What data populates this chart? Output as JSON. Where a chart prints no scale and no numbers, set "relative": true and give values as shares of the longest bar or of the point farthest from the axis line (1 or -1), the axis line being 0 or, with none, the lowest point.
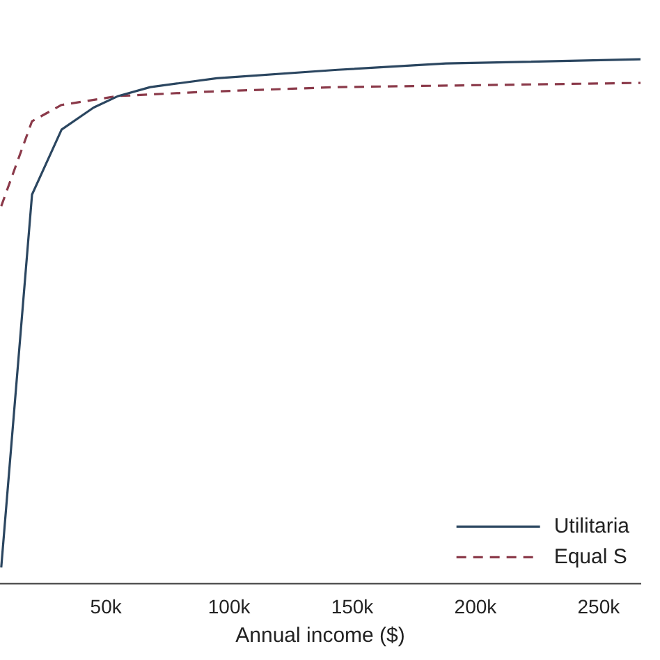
{
  "chart_data": {
    "type": "line",
    "xlabel": "Annual income ($)",
    "relative": true,
    "marker": "none",
    "legend": "bottom right",
    "xlim": [
      7000,
      267000
    ],
    "xticks": [
      {
        "value": 50000,
        "label": "50k"
      },
      {
        "value": 100000,
        "label": "100k"
      },
      {
        "value": 150000,
        "label": "150k"
      },
      {
        "value": 200000,
        "label": "200k"
      },
      {
        "value": 250000,
        "label": "250k"
      }
    ],
    "series": [
      {
        "name": "Utilitaria",
        "color": "#2b4660",
        "line_style": "solid",
        "x": [
          7500,
          20000,
          32000,
          45000,
          55000,
          68000,
          95000,
          144000,
          188000,
          267000
        ],
        "values": [
          0.031,
          0.742,
          0.866,
          0.908,
          0.93,
          0.947,
          0.964,
          0.98,
          0.992,
          1
        ]
      },
      {
        "name": "Equal S",
        "color": "#8b3a4a",
        "line_style": "dashed",
        "x": [
          7500,
          20000,
          32000,
          55000,
          90000,
          144000,
          267000
        ],
        "values": [
          0.72,
          0.882,
          0.913,
          0.93,
          0.938,
          0.947,
          0.955
        ]
      }
    ]
  }
}
